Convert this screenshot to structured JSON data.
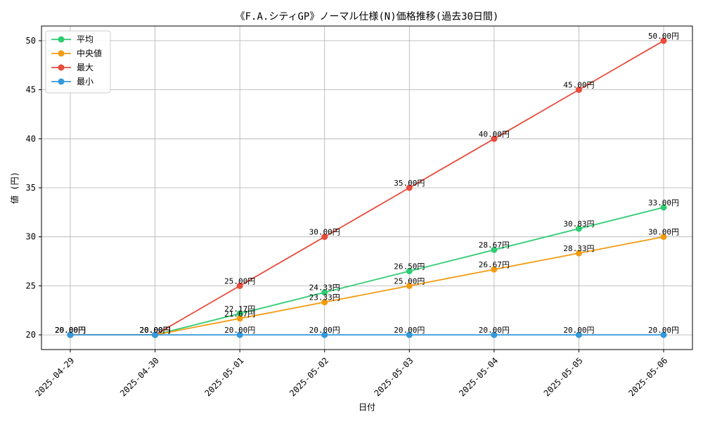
{
  "chart_data": {
    "type": "line",
    "title": "《F.A.シティGP》ノーマル仕様(N)価格推移(過去30日間)",
    "xlabel": "日付",
    "ylabel": "値 (円)",
    "categories": [
      "2025-04-29",
      "2025-04-30",
      "2025-05-01",
      "2025-05-02",
      "2025-05-03",
      "2025-05-04",
      "2025-05-05",
      "2025-05-06"
    ],
    "ylim": [
      18.5,
      51.5
    ],
    "yticks": [
      20,
      25,
      30,
      35,
      40,
      45,
      50
    ],
    "grid": true,
    "legend_position": "top-left",
    "label_suffix": "円",
    "series": [
      {
        "name": "平均",
        "color": "#2ecc71",
        "values": [
          20.0,
          20.0,
          22.17,
          24.33,
          26.5,
          28.67,
          30.83,
          33.0
        ]
      },
      {
        "name": "中央値",
        "color": "#f39c12",
        "values": [
          20.0,
          20.0,
          21.67,
          23.33,
          25.0,
          26.67,
          28.33,
          30.0
        ]
      },
      {
        "name": "最大",
        "color": "#e74c3c",
        "values": [
          20.0,
          20.0,
          25.0,
          30.0,
          35.0,
          40.0,
          45.0,
          50.0
        ]
      },
      {
        "name": "最小",
        "color": "#3498db",
        "values": [
          20.0,
          20.0,
          20.0,
          20.0,
          20.0,
          20.0,
          20.0,
          20.0
        ]
      }
    ]
  }
}
